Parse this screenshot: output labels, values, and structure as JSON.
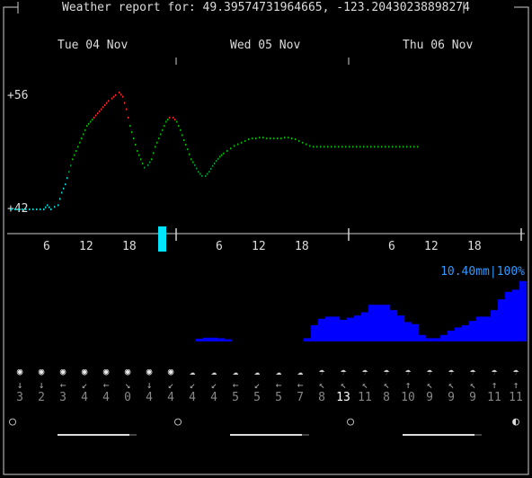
{
  "header": {
    "title": "Weather report for: 49.39574731964665, -123.20430238898274"
  },
  "days": [
    "Tue 04 Nov",
    "Wed 05 Nov",
    "Thu 06 Nov"
  ],
  "temperature": {
    "max_label": "+56",
    "min_label": "+42"
  },
  "hour_labels": [
    "6",
    "12",
    "18",
    "6",
    "12",
    "18",
    "6",
    "12",
    "18"
  ],
  "precipitation": {
    "summary": "10.40mm|100%"
  },
  "wind": {
    "icons": [
      "sun-icon",
      "sun-icon",
      "sun-icon",
      "sun-icon",
      "sun-icon",
      "sun-icon",
      "sun-icon",
      "sun-icon",
      "cloudy-icon",
      "cloudy-icon",
      "cloud-icon",
      "cloud-icon",
      "cloud-icon",
      "cloud-icon",
      "rain-cloud-icon",
      "rain-cloud-icon",
      "rain-cloud-icon",
      "rain-cloud-icon",
      "rain-cloud-icon",
      "rain-cloud-icon",
      "rain-cloud-icon",
      "rain-cloud-icon",
      "rain-cloud-icon",
      "rain-cloud-icon"
    ],
    "glyphs": [
      "◉",
      "◉",
      "◉",
      "◉",
      "◉",
      "◉",
      "◉",
      "◉",
      "☁",
      "☁",
      "☁",
      "☁",
      "☁",
      "☁",
      "☂",
      "☂",
      "☂",
      "☂",
      "☂",
      "☂",
      "☂",
      "☂",
      "☂",
      "☂"
    ],
    "directions": [
      "↓",
      "↓",
      "←",
      "↙",
      "←",
      "↘",
      "↓",
      "↙",
      "↙",
      "↙",
      "←",
      "↙",
      "←",
      "←",
      "↖",
      "↖",
      "↖",
      "↖",
      "↑",
      "↖",
      "↖",
      "↖",
      "↑",
      "↑"
    ],
    "speeds": [
      "3",
      "2",
      "3",
      "4",
      "4",
      "0",
      "4",
      "4",
      "4",
      "4",
      "5",
      "5",
      "5",
      "7",
      "8",
      "13",
      "11",
      "8",
      "10",
      "9",
      "9",
      "9",
      "11",
      "11"
    ]
  },
  "astro": {
    "glyphs": [
      "○",
      "○",
      "○",
      "◐"
    ]
  },
  "colors": {
    "hot": "#ff3030",
    "warm": "#00c000",
    "mild": "#00a040",
    "cool": "#00e0e0",
    "rain": "#0000ff",
    "accent": "#3399ff"
  }
}
